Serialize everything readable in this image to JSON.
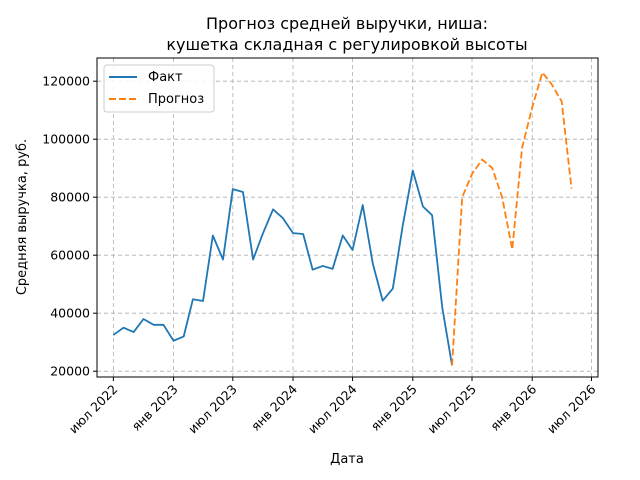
{
  "chart_data": {
    "type": "line",
    "title_line1": "Прогноз средней выручки, ниша:",
    "title_line2": "кушетка складная с регулировкой высоты",
    "xlabel": "Дата",
    "ylabel": "Средняя выручка, руб.",
    "x_ticks": [
      "2022-07-01",
      "2023-01-01",
      "2023-07-01",
      "2024-01-01",
      "2024-07-01",
      "2025-01-01",
      "2025-07-01",
      "2026-01-01",
      "2026-07-01"
    ],
    "x_tick_labels": [
      "июл 2022",
      "янв 2023",
      "июл 2023",
      "янв 2024",
      "июл 2024",
      "янв 2025",
      "июл 2025",
      "янв 2026",
      "июл 2026"
    ],
    "xlim": [
      "2022-05-12",
      "2026-07-21"
    ],
    "y_ticks": [
      20000,
      40000,
      60000,
      80000,
      100000,
      120000
    ],
    "y_tick_labels": [
      "20000",
      "40000",
      "60000",
      "80000",
      "100000",
      "120000"
    ],
    "ylim": [
      18000,
      128000
    ],
    "grid": true,
    "legend_position": "top-left",
    "series": [
      {
        "name": "Факт",
        "color": "#1f77b4",
        "style": "solid",
        "x": [
          "2022-07-01",
          "2022-08-01",
          "2022-09-01",
          "2022-10-01",
          "2022-11-01",
          "2022-12-01",
          "2023-01-01",
          "2023-02-01",
          "2023-03-01",
          "2023-04-01",
          "2023-05-01",
          "2023-06-01",
          "2023-07-01",
          "2023-08-01",
          "2023-09-01",
          "2023-10-01",
          "2023-11-01",
          "2023-12-01",
          "2024-01-01",
          "2024-02-01",
          "2024-03-01",
          "2024-04-01",
          "2024-05-01",
          "2024-06-01",
          "2024-07-01",
          "2024-08-01",
          "2024-09-01",
          "2024-10-01",
          "2024-11-01",
          "2024-12-01",
          "2025-01-01",
          "2025-02-01",
          "2025-03-01",
          "2025-04-01",
          "2025-05-01"
        ],
        "y": [
          32500,
          35000,
          33500,
          38000,
          36000,
          36000,
          30500,
          32000,
          44800,
          44200,
          66800,
          58500,
          82800,
          81800,
          58500,
          67500,
          75800,
          72800,
          67600,
          67300,
          55000,
          56300,
          55300,
          66800,
          61800,
          77300,
          57000,
          44300,
          48500,
          70000,
          89200,
          76800,
          73800,
          42000,
          22000
        ]
      },
      {
        "name": "Прогноз",
        "color": "#ff7f0e",
        "style": "dashed",
        "x": [
          "2025-05-01",
          "2025-06-01",
          "2025-07-01",
          "2025-08-01",
          "2025-09-01",
          "2025-10-01",
          "2025-11-01",
          "2025-12-01",
          "2026-01-01",
          "2026-02-01",
          "2026-03-01",
          "2026-04-01",
          "2026-05-01"
        ],
        "y": [
          22000,
          80000,
          88000,
          93000,
          90000,
          80000,
          62000,
          97000,
          111000,
          123000,
          119000,
          113000,
          83000
        ]
      }
    ]
  }
}
